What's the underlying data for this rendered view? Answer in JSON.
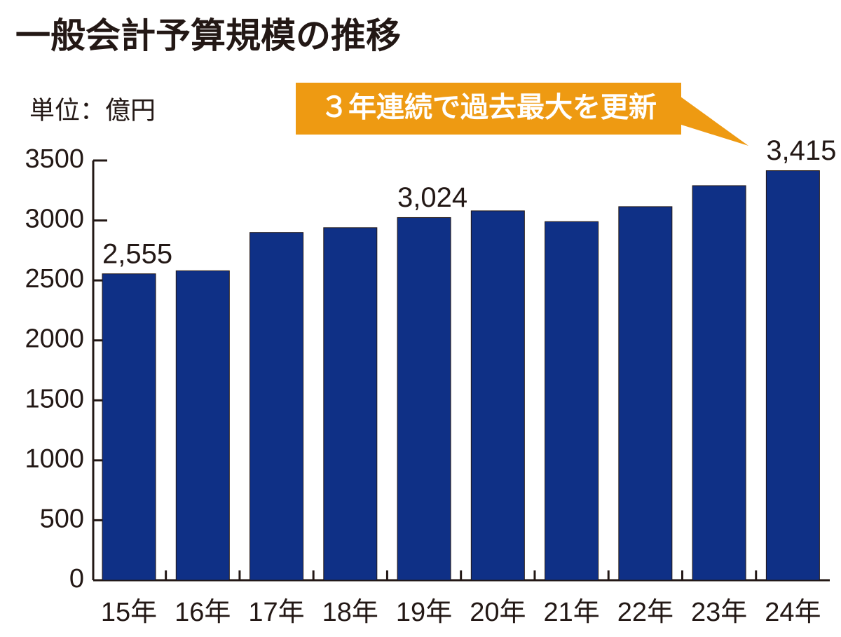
{
  "chart_data": {
    "type": "bar",
    "title": "一般会計予算規模の推移",
    "unit_label": "単位：億円",
    "annotation": "３年連続で過去最大を更新",
    "categories": [
      "15年",
      "16年",
      "17年",
      "18年",
      "19年",
      "20年",
      "21年",
      "22年",
      "23年",
      "24年"
    ],
    "values": [
      2555,
      2580,
      2900,
      2940,
      3024,
      3080,
      2990,
      3115,
      3290,
      3415
    ],
    "value_labels": [
      "2,555",
      null,
      null,
      null,
      "3,024",
      null,
      null,
      null,
      null,
      "3,415"
    ],
    "color": "#0f3086",
    "annotation_color": "#ee9a12",
    "ylim": [
      0,
      3500
    ],
    "yticks": [
      0,
      500,
      1000,
      1500,
      2000,
      2500,
      3000,
      3500
    ]
  }
}
